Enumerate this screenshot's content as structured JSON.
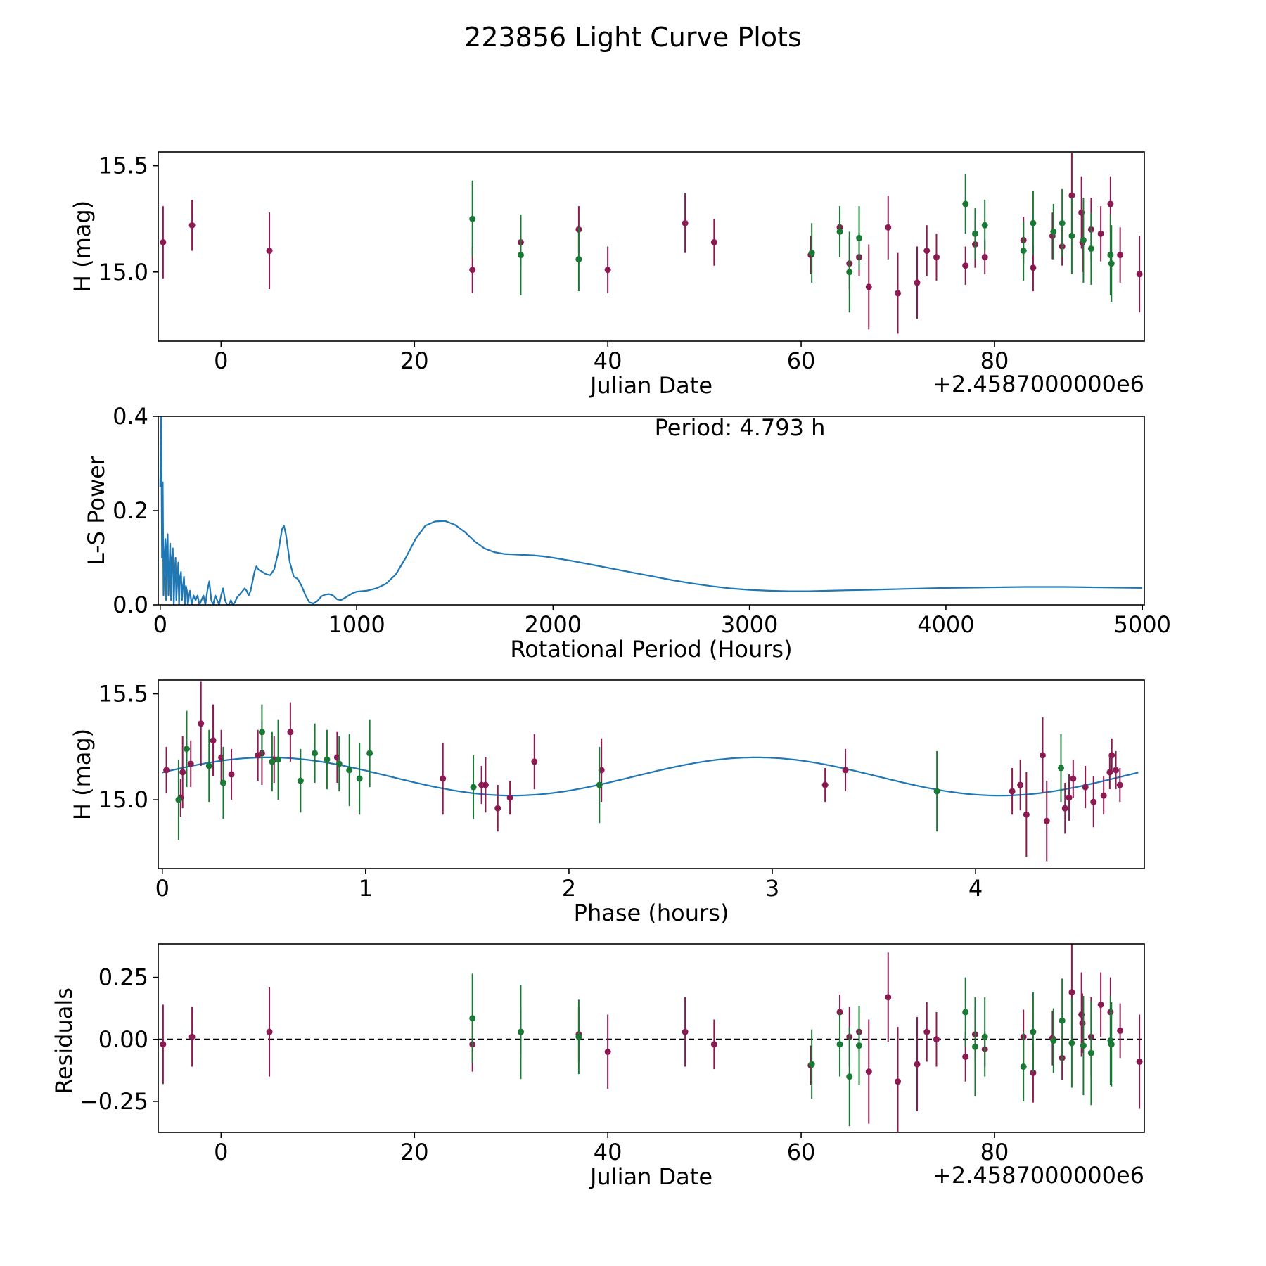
{
  "figure_title": "223856 Light Curve Plots",
  "colors": {
    "filter_a": "#8b1a52",
    "filter_b": "#1a7a35",
    "model_line": "#1f77b4",
    "zero_line": "#000000"
  },
  "chart_data": [
    {
      "type": "scatter",
      "name": "light-curve",
      "xlabel": "Julian Date",
      "ylabel": "H (mag)",
      "offset_text": "+2.4587000000e6",
      "xlim": [
        -6.5,
        95.5
      ],
      "ylim": [
        14.675,
        15.565
      ],
      "xticks": [
        0,
        20,
        40,
        60,
        80
      ],
      "xtick_labels": [
        "0",
        "20",
        "40",
        "60",
        "80"
      ],
      "yticks": [
        15.0,
        15.5
      ],
      "ytick_labels": [
        "15.0",
        "15.5"
      ],
      "series": [
        {
          "name": "filter_a",
          "color": "#8b1a52",
          "x": [
            -6.0,
            -3.0,
            5.0,
            26.0,
            31.0,
            37.0,
            40.0,
            48.0,
            51.0,
            61.0,
            64.0,
            65.0,
            66.0,
            67.0,
            69.0,
            70.0,
            72.0,
            73.0,
            74.0,
            77.0,
            78.0,
            79.0,
            83.0,
            84.0,
            86.0,
            87.0,
            88.0,
            89.0,
            89.1,
            90.0,
            91.0,
            92.0,
            93.0,
            95.0
          ],
          "y": [
            15.14,
            15.22,
            15.1,
            15.01,
            15.14,
            15.2,
            15.01,
            15.23,
            15.14,
            15.08,
            15.21,
            15.04,
            15.07,
            14.93,
            15.21,
            14.9,
            14.95,
            15.1,
            15.07,
            15.03,
            15.13,
            15.07,
            15.15,
            15.02,
            15.17,
            15.12,
            15.36,
            15.28,
            15.14,
            15.2,
            15.18,
            15.32,
            15.08,
            14.99
          ],
          "err": [
            0.17,
            0.12,
            0.18,
            0.11,
            0.11,
            0.11,
            0.11,
            0.14,
            0.11,
            0.09,
            0.08,
            0.12,
            0.09,
            0.2,
            0.15,
            0.19,
            0.17,
            0.12,
            0.11,
            0.09,
            0.11,
            0.08,
            0.11,
            0.11,
            0.11,
            0.09,
            0.2,
            0.17,
            0.14,
            0.15,
            0.13,
            0.13,
            0.13,
            0.18
          ]
        },
        {
          "name": "filter_b",
          "color": "#1a7a35",
          "x": [
            26.0,
            31.0,
            37.0,
            61.1,
            64.0,
            65.0,
            66.0,
            77.0,
            78.0,
            79.0,
            83.0,
            84.0,
            86.1,
            87.0,
            88.0,
            89.2,
            90.0,
            92.0,
            92.1
          ],
          "y": [
            15.25,
            15.08,
            15.06,
            15.09,
            15.19,
            15.0,
            15.16,
            15.32,
            15.18,
            15.22,
            15.1,
            15.23,
            15.19,
            15.23,
            15.17,
            15.15,
            15.11,
            15.08,
            15.04
          ],
          "err": [
            0.18,
            0.19,
            0.15,
            0.14,
            0.12,
            0.19,
            0.15,
            0.14,
            0.12,
            0.12,
            0.14,
            0.15,
            0.13,
            0.16,
            0.18,
            0.2,
            0.17,
            0.19,
            0.18
          ]
        }
      ]
    },
    {
      "type": "line",
      "name": "periodogram",
      "xlabel": "Rotational Period (Hours)",
      "ylabel": "L-S Power",
      "annotation": "Period: 4.793 h",
      "xlim": [
        -10,
        5010
      ],
      "ylim": [
        0.0,
        0.4
      ],
      "xticks": [
        0,
        1000,
        2000,
        3000,
        4000,
        5000
      ],
      "xtick_labels": [
        "0",
        "1000",
        "2000",
        "3000",
        "4000",
        "5000"
      ],
      "yticks": [
        0.0,
        0.2,
        0.4
      ],
      "ytick_labels": [
        "0.0",
        "0.2",
        "0.4"
      ],
      "x": [
        0,
        5,
        9,
        13,
        17,
        22,
        26,
        30,
        34,
        38,
        42,
        47,
        51,
        55,
        60,
        64,
        69,
        73,
        78,
        82,
        87,
        92,
        96,
        101,
        106,
        111,
        116,
        121,
        126,
        131,
        136,
        141,
        147,
        152,
        160,
        170,
        180,
        190,
        200,
        210,
        220,
        230,
        240,
        250,
        260,
        270,
        280,
        290,
        300,
        310,
        320,
        330,
        340,
        350,
        360,
        370,
        380,
        390,
        400,
        410,
        420,
        430,
        440,
        450,
        460,
        470,
        480,
        490,
        500,
        520,
        540,
        560,
        580,
        600,
        620,
        630,
        640,
        660,
        680,
        700,
        720,
        740,
        760,
        780,
        800,
        820,
        840,
        860,
        880,
        900,
        920,
        940,
        960,
        980,
        1000,
        1050,
        1100,
        1150,
        1200,
        1250,
        1300,
        1350,
        1400,
        1450,
        1500,
        1550,
        1600,
        1650,
        1700,
        1750,
        1800,
        1850,
        1900,
        1950,
        2000,
        2100,
        2200,
        2300,
        2400,
        2500,
        2600,
        2700,
        2800,
        2900,
        3000,
        3100,
        3200,
        3300,
        3400,
        3500,
        3600,
        3800,
        4000,
        4200,
        4400,
        4600,
        4800,
        5000
      ],
      "y": [
        0.25,
        0.4,
        0.1,
        0.26,
        0.02,
        0.1,
        0.14,
        0.01,
        0.12,
        0.15,
        0.02,
        0.08,
        0.13,
        0.01,
        0.1,
        0.12,
        0.0,
        0.06,
        0.1,
        0.01,
        0.05,
        0.09,
        0.0,
        0.06,
        0.07,
        0.01,
        0.04,
        0.06,
        0.0,
        0.04,
        0.03,
        0.0,
        0.02,
        0.03,
        0.0,
        0.02,
        0.01,
        0.02,
        0.0,
        0.01,
        0.02,
        0.0,
        0.03,
        0.05,
        0.01,
        0.0,
        0.02,
        0.01,
        0.0,
        0.02,
        0.035,
        0.01,
        0.0,
        0.0,
        0.01,
        0.0,
        0.005,
        0.015,
        0.02,
        0.025,
        0.03,
        0.035,
        0.03,
        0.02,
        0.03,
        0.05,
        0.07,
        0.082,
        0.075,
        0.07,
        0.065,
        0.063,
        0.075,
        0.11,
        0.16,
        0.168,
        0.15,
        0.09,
        0.06,
        0.055,
        0.04,
        0.02,
        0.005,
        0.003,
        0.008,
        0.018,
        0.022,
        0.023,
        0.02,
        0.012,
        0.01,
        0.015,
        0.02,
        0.025,
        0.028,
        0.03,
        0.035,
        0.045,
        0.065,
        0.1,
        0.14,
        0.168,
        0.177,
        0.178,
        0.17,
        0.155,
        0.135,
        0.12,
        0.112,
        0.108,
        0.107,
        0.106,
        0.105,
        0.103,
        0.1,
        0.093,
        0.085,
        0.077,
        0.069,
        0.061,
        0.053,
        0.046,
        0.04,
        0.035,
        0.032,
        0.03,
        0.029,
        0.029,
        0.03,
        0.031,
        0.032,
        0.034,
        0.036,
        0.037,
        0.038,
        0.038,
        0.037,
        0.036
      ]
    },
    {
      "type": "scatter",
      "name": "phased-light-curve",
      "xlabel": "Phase (hours)",
      "ylabel": "H (mag)",
      "xlim": [
        -0.02,
        4.83
      ],
      "ylim": [
        14.675,
        15.565
      ],
      "xticks": [
        0,
        1,
        2,
        3,
        4
      ],
      "xtick_labels": [
        "0",
        "1",
        "2",
        "3",
        "4"
      ],
      "yticks": [
        15.0,
        15.5
      ],
      "ytick_labels": [
        "15.0",
        "15.5"
      ],
      "model": {
        "mean": 15.11,
        "amplitude": 0.09,
        "period_hours": 2.4,
        "peak_phase": 0.52,
        "x_min": 0.0,
        "x_max": 4.8
      },
      "series": [
        {
          "name": "filter_a",
          "color": "#8b1a52",
          "x": [
            0.02,
            0.09,
            0.1,
            0.14,
            0.19,
            0.25,
            0.29,
            0.34,
            0.47,
            0.49,
            0.55,
            0.63,
            0.86,
            1.38,
            1.57,
            1.59,
            1.65,
            1.71,
            1.83,
            2.16,
            3.26,
            3.36,
            4.18,
            4.22,
            4.25,
            4.33,
            4.35,
            4.44,
            4.46,
            4.48,
            4.54,
            4.58,
            4.63,
            4.66,
            4.67,
            4.69,
            4.71
          ],
          "y": [
            15.14,
            15.01,
            15.13,
            15.17,
            15.36,
            15.28,
            15.2,
            15.12,
            15.21,
            15.22,
            15.19,
            15.32,
            15.2,
            15.1,
            15.07,
            15.07,
            14.96,
            15.01,
            15.18,
            15.14,
            15.07,
            15.14,
            15.04,
            15.07,
            14.93,
            15.21,
            14.9,
            14.96,
            15.01,
            15.1,
            15.06,
            14.99,
            15.02,
            15.13,
            15.21,
            15.14,
            15.07
          ],
          "err": [
            0.11,
            0.09,
            0.17,
            0.11,
            0.2,
            0.17,
            0.13,
            0.12,
            0.12,
            0.15,
            0.11,
            0.14,
            0.12,
            0.17,
            0.09,
            0.13,
            0.11,
            0.08,
            0.13,
            0.15,
            0.08,
            0.1,
            0.11,
            0.12,
            0.2,
            0.18,
            0.19,
            0.12,
            0.11,
            0.09,
            0.1,
            0.12,
            0.09,
            0.08,
            0.08,
            0.09,
            0.08
          ]
        },
        {
          "name": "filter_b",
          "color": "#1a7a35",
          "x": [
            0.08,
            0.12,
            0.23,
            0.3,
            0.49,
            0.54,
            0.57,
            0.68,
            0.75,
            0.81,
            0.87,
            0.92,
            0.97,
            1.02,
            1.53,
            2.15,
            3.81,
            4.42
          ],
          "y": [
            15.0,
            15.24,
            15.16,
            15.08,
            15.32,
            15.18,
            15.19,
            15.09,
            15.22,
            15.19,
            15.17,
            15.14,
            15.1,
            15.22,
            15.06,
            15.07,
            15.04,
            15.15
          ],
          "err": [
            0.19,
            0.18,
            0.17,
            0.17,
            0.13,
            0.14,
            0.19,
            0.15,
            0.14,
            0.14,
            0.13,
            0.17,
            0.17,
            0.16,
            0.15,
            0.18,
            0.19,
            0.16
          ]
        }
      ]
    },
    {
      "type": "scatter",
      "name": "residuals",
      "xlabel": "Julian Date",
      "ylabel": "Residuals",
      "offset_text": "+2.4587000000e6",
      "xlim": [
        -6.5,
        95.5
      ],
      "ylim": [
        -0.375,
        0.385
      ],
      "xticks": [
        0,
        20,
        40,
        60,
        80
      ],
      "xtick_labels": [
        "0",
        "20",
        "40",
        "60",
        "80"
      ],
      "yticks": [
        -0.25,
        0.0,
        0.25
      ],
      "ytick_labels": [
        "−0.25",
        "0.00",
        "0.25"
      ],
      "zero_line": 0.0,
      "series": [
        {
          "name": "filter_a",
          "color": "#8b1a52",
          "x": [
            -6.0,
            -3.0,
            5.0,
            26.0,
            31.0,
            37.0,
            40.0,
            48.0,
            51.0,
            61.0,
            64.0,
            65.0,
            66.0,
            67.0,
            69.0,
            70.0,
            72.0,
            73.0,
            74.0,
            77.0,
            78.0,
            79.0,
            83.0,
            84.0,
            86.0,
            87.0,
            88.0,
            89.0,
            89.1,
            90.0,
            91.0,
            92.0,
            93.0,
            95.0
          ],
          "y": [
            -0.02,
            0.01,
            0.03,
            -0.02,
            0.03,
            0.02,
            -0.05,
            0.03,
            -0.02,
            -0.105,
            0.11,
            0.01,
            0.03,
            -0.13,
            0.17,
            -0.17,
            -0.1,
            0.03,
            0.0,
            -0.07,
            0.02,
            -0.04,
            0.01,
            -0.135,
            0.005,
            -0.075,
            0.19,
            0.1,
            0.065,
            0.01,
            0.14,
            0.11,
            0.035,
            -0.09
          ],
          "err": [
            0.16,
            0.12,
            0.18,
            0.11,
            0.09,
            0.11,
            0.15,
            0.14,
            0.1,
            0.08,
            0.07,
            0.12,
            0.09,
            0.21,
            0.18,
            0.22,
            0.19,
            0.12,
            0.11,
            0.1,
            0.11,
            0.07,
            0.11,
            0.12,
            0.11,
            0.09,
            0.2,
            0.17,
            0.12,
            0.16,
            0.13,
            0.14,
            0.11,
            0.19
          ]
        },
        {
          "name": "filter_b",
          "color": "#1a7a35",
          "x": [
            26.0,
            31.0,
            37.0,
            61.1,
            64.0,
            65.0,
            66.0,
            77.0,
            78.0,
            79.0,
            83.0,
            84.0,
            86.1,
            87.0,
            88.0,
            89.2,
            90.0,
            92.0,
            92.1
          ],
          "y": [
            0.085,
            0.03,
            0.01,
            -0.1,
            -0.02,
            -0.15,
            -0.025,
            0.11,
            -0.03,
            0.01,
            -0.11,
            0.03,
            -0.005,
            0.075,
            -0.015,
            -0.025,
            -0.055,
            -0.005,
            -0.02
          ],
          "err": [
            0.18,
            0.19,
            0.15,
            0.14,
            0.13,
            0.2,
            0.16,
            0.14,
            0.2,
            0.16,
            0.14,
            0.16,
            0.13,
            0.17,
            0.18,
            0.2,
            0.21,
            0.18,
            0.17
          ]
        }
      ]
    }
  ]
}
